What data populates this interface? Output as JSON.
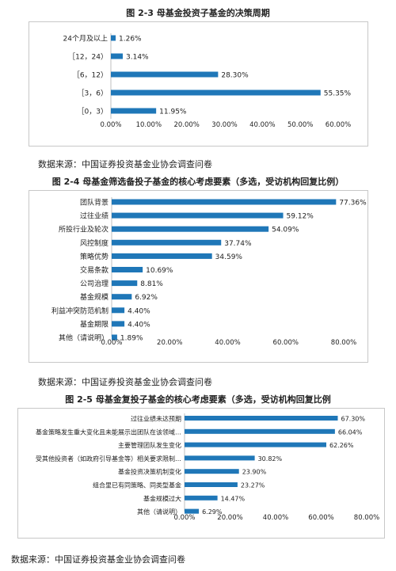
{
  "source_text": "数据来源：中国证券投资基金业协会调查问卷",
  "chart_data": [
    {
      "type": "bar",
      "orientation": "horizontal",
      "title": "图 2-3 母基金投资子基金的决策周期",
      "categories": [
        "24个月及以上",
        "［12，24）",
        "［6，12）",
        "［3，6）",
        "［0，3）"
      ],
      "values": [
        1.26,
        3.14,
        28.3,
        55.35,
        11.95
      ],
      "value_labels": [
        "1.26%",
        "3.14%",
        "28.30%",
        "55.35%",
        "11.95%"
      ],
      "xlim": [
        0,
        60
      ],
      "ticks": [
        0,
        10,
        20,
        30,
        40,
        50,
        60
      ],
      "tick_labels": [
        "0.00%",
        "10.00%",
        "20.00%",
        "30.00%",
        "40.00%",
        "50.00%",
        "60.00%"
      ],
      "bar_color": "#1f77b8",
      "grid": false
    },
    {
      "type": "bar",
      "orientation": "horizontal",
      "title": "图 2-4 母基金筛选备投子基金的核心考虑要素（多选，受访机构回复比例）",
      "categories": [
        "团队背景",
        "过往业绩",
        "所投行业及轮次",
        "风控制度",
        "策略优势",
        "交易条款",
        "公司治理",
        "基金规模",
        "利益冲突防范机制",
        "基金期限",
        "其他（请说明）"
      ],
      "values": [
        77.36,
        59.12,
        54.09,
        37.74,
        34.59,
        10.69,
        8.81,
        6.92,
        4.4,
        4.4,
        1.89
      ],
      "value_labels": [
        "77.36%",
        "59.12%",
        "54.09%",
        "37.74%",
        "34.59%",
        "10.69%",
        "8.81%",
        "6.92%",
        "4.40%",
        "4.40%",
        "1.89%"
      ],
      "xlim": [
        0,
        80
      ],
      "ticks": [
        0,
        20,
        40,
        60,
        80
      ],
      "tick_labels": [
        "0.00%",
        "20.00%",
        "40.00%",
        "60.00%",
        "80.00%"
      ],
      "bar_color": "#1f77b8",
      "grid": false
    },
    {
      "type": "bar",
      "orientation": "horizontal",
      "title": "图 2-5 母基金复投子基金的核心考虑要素（多选，受访机构回复比例",
      "categories": [
        "过往业绩未达预期",
        "基金策略发生重大变化且未能展示出团队在该领域…",
        "主要管理团队发生变化",
        "受其他投资者（如政府引导基金等）相关要求限制…",
        "基金投资决策机制变化",
        "组合里已有同策略、同类型基金",
        "基金规模过大",
        "其他（请说明）"
      ],
      "values": [
        67.3,
        66.04,
        62.26,
        30.82,
        23.9,
        23.27,
        14.47,
        6.29
      ],
      "value_labels": [
        "67.30%",
        "66.04%",
        "62.26%",
        "30.82%",
        "23.90%",
        "23.27%",
        "14.47%",
        "6.29%"
      ],
      "xlim": [
        0,
        80
      ],
      "ticks": [
        0,
        20,
        40,
        60,
        80
      ],
      "tick_labels": [
        "0.00%",
        "20.00%",
        "40.00%",
        "60.00%",
        "80.00%"
      ],
      "bar_color": "#1f77b8",
      "grid": false
    }
  ]
}
